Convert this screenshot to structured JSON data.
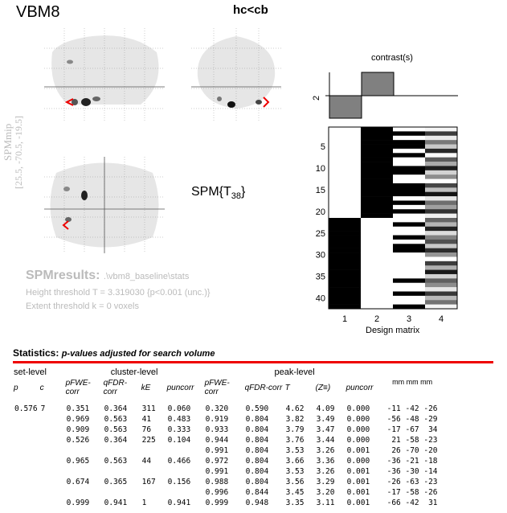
{
  "app_title": "VBM8",
  "contrast_title": "hc<cb",
  "mip": {
    "label": "SPMmip",
    "coords": "[25.5, -70.5, -19.5]"
  },
  "stat_type": "SPM{T38}",
  "results": {
    "label": "SPMresults:",
    "path": ".\\vbm8_baseline\\stats",
    "height_threshold": "Height threshold T = 3.319030  {p<0.001 (unc.)}",
    "extent_threshold": "Extent threshold k = 0 voxels"
  },
  "contrast_panel": {
    "title": "contrast(s)",
    "row_label": "2",
    "weights": [
      -1,
      1,
      0,
      0
    ]
  },
  "design_matrix": {
    "label": "Design matrix",
    "col_labels": [
      "1",
      "2",
      "3",
      "4"
    ],
    "row_ticks": [
      "5",
      "10",
      "15",
      "20",
      "25",
      "30",
      "35",
      "40"
    ],
    "n_rows": 42
  },
  "stats": {
    "title": "Statistics:",
    "subtitle": "p-values adjusted for search volume",
    "group_headers": {
      "set": "set-level",
      "cluster": "cluster-level",
      "peak": "peak-level",
      "coords": "mm mm mm"
    },
    "columns": {
      "set_p": "p",
      "set_c": "c",
      "cl_pfwe": "pFWE-corr",
      "cl_qfdr": "qFDR-corr",
      "cl_ke": "kE",
      "cl_punc": "puncorr",
      "pk_pfwe": "pFWE-corr",
      "pk_qfdr": "qFDR-corr",
      "pk_t": "T",
      "pk_z": "(Z≡)",
      "pk_punc": "puncorr"
    },
    "rows": [
      [
        "0.576",
        "7",
        "0.351",
        "0.364",
        "311",
        "0.060",
        "0.320",
        "0.590",
        "4.62",
        "4.09",
        "0.000",
        "-11 -42 -26"
      ],
      [
        "",
        "",
        "0.969",
        "0.563",
        "41",
        "0.483",
        "0.919",
        "0.804",
        "3.82",
        "3.49",
        "0.000",
        "-56 -48 -29"
      ],
      [
        "",
        "",
        "0.909",
        "0.563",
        "76",
        "0.333",
        "0.933",
        "0.804",
        "3.79",
        "3.47",
        "0.000",
        "-17 -67  34"
      ],
      [
        "",
        "",
        "0.526",
        "0.364",
        "225",
        "0.104",
        "0.944",
        "0.804",
        "3.76",
        "3.44",
        "0.000",
        " 21 -58 -23"
      ],
      [
        "",
        "",
        "",
        "",
        "",
        "",
        "0.991",
        "0.804",
        "3.53",
        "3.26",
        "0.001",
        " 26 -70 -20"
      ],
      [
        "",
        "",
        "0.965",
        "0.563",
        "44",
        "0.466",
        "0.972",
        "0.804",
        "3.66",
        "3.36",
        "0.000",
        "-36 -21 -18"
      ],
      [
        "",
        "",
        "",
        "",
        "",
        "",
        "0.991",
        "0.804",
        "3.53",
        "3.26",
        "0.001",
        "-36 -30 -14"
      ],
      [
        "",
        "",
        "0.674",
        "0.365",
        "167",
        "0.156",
        "0.988",
        "0.804",
        "3.56",
        "3.29",
        "0.001",
        "-26 -63 -23"
      ],
      [
        "",
        "",
        "",
        "",
        "",
        "",
        "0.996",
        "0.844",
        "3.45",
        "3.20",
        "0.001",
        "-17 -58 -26"
      ],
      [
        "",
        "",
        "0.999",
        "0.941",
        "1",
        "0.941",
        "0.999",
        "0.948",
        "3.35",
        "3.11",
        "0.001",
        "-66 -42  31"
      ]
    ]
  }
}
